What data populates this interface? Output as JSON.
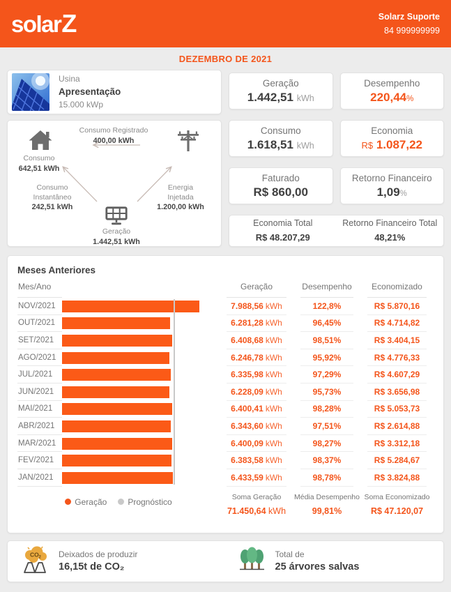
{
  "colors": {
    "accent": "#F4551B",
    "bar": "#FB5A17",
    "prognostico": "#C9C9C9",
    "page_bg": "#ECECEC"
  },
  "header": {
    "logo_text": "solar",
    "logo_z": "Z",
    "support_name": "Solarz Suporte",
    "support_phone": "84 999999999"
  },
  "period_title": "DEZEMBRO DE 2021",
  "plant": {
    "type_label": "Usina",
    "name": "Apresentação",
    "capacity": "15.000 kWp"
  },
  "flow": {
    "consumo_label": "Consumo",
    "consumo_value": "642,51 kWh",
    "registrado_label": "Consumo Registrado",
    "registrado_value": "400,00 kWh",
    "instantaneo_label1": "Consumo",
    "instantaneo_label2": "Instantâneo",
    "instantaneo_value": "242,51 kWh",
    "injetada_label1": "Energia",
    "injetada_label2": "Injetada",
    "injetada_value": "1.200,00 kWh",
    "geracao_label": "Geração",
    "geracao_value": "1.442,51 kWh"
  },
  "stats": {
    "geracao_label": "Geração",
    "geracao_value": "1.442,51",
    "geracao_unit": "kWh",
    "desempenho_label": "Desempenho",
    "desempenho_value": "220,44",
    "desempenho_unit": "%",
    "consumo_label": "Consumo",
    "consumo_value": "1.618,51",
    "consumo_unit": "kWh",
    "economia_label": "Economia",
    "economia_prefix": "R$",
    "economia_value": "1.087,22",
    "faturado_label": "Faturado",
    "faturado_value": "R$ 860,00",
    "retorno_label": "Retorno Financeiro",
    "retorno_value": "1,09",
    "retorno_unit": "%",
    "economia_total_label": "Economia Total",
    "economia_total_value": "R$ 48.207,29",
    "retorno_total_label": "Retorno Financeiro Total",
    "retorno_total_value": "48,21%"
  },
  "history": {
    "title": "Meses Anteriores",
    "month_col": "Mes/Ano",
    "columns": [
      "Geração",
      "Desempenho",
      "Economizado"
    ],
    "rows": [
      {
        "month": "NOV/2021",
        "geracao": "7.988,56",
        "geracao_unit": "kWh",
        "desempenho": "122,8%",
        "economizado": "R$ 5.870,16"
      },
      {
        "month": "OUT/2021",
        "geracao": "6.281,28",
        "geracao_unit": "kWh",
        "desempenho": "96,45%",
        "economizado": "R$ 4.714,82"
      },
      {
        "month": "SET/2021",
        "geracao": "6.408,68",
        "geracao_unit": "kWh",
        "desempenho": "98,51%",
        "economizado": "R$ 3.404,15"
      },
      {
        "month": "AGO/2021",
        "geracao": "6.246,78",
        "geracao_unit": "kWh",
        "desempenho": "95,92%",
        "economizado": "R$ 4.776,33"
      },
      {
        "month": "JUL/2021",
        "geracao": "6.335,98",
        "geracao_unit": "kWh",
        "desempenho": "97,29%",
        "economizado": "R$ 4.607,29"
      },
      {
        "month": "JUN/2021",
        "geracao": "6.228,09",
        "geracao_unit": "kWh",
        "desempenho": "95,73%",
        "economizado": "R$ 3.656,98"
      },
      {
        "month": "MAI/2021",
        "geracao": "6.400,41",
        "geracao_unit": "kWh",
        "desempenho": "98,28%",
        "economizado": "R$ 5.053,73"
      },
      {
        "month": "ABR/2021",
        "geracao": "6.343,60",
        "geracao_unit": "kWh",
        "desempenho": "97,51%",
        "economizado": "R$ 2.614,88"
      },
      {
        "month": "MAR/2021",
        "geracao": "6.400,09",
        "geracao_unit": "kWh",
        "desempenho": "98,27%",
        "economizado": "R$ 3.312,18"
      },
      {
        "month": "FEV/2021",
        "geracao": "6.383,58",
        "geracao_unit": "kWh",
        "desempenho": "98,37%",
        "economizado": "R$ 5.284,67"
      },
      {
        "month": "JAN/2021",
        "geracao": "6.433,59",
        "geracao_unit": "kWh",
        "desempenho": "98,78%",
        "economizado": "R$ 3.824,88"
      }
    ],
    "legend": [
      {
        "label": "Geração",
        "color": "#F4551B"
      },
      {
        "label": "Prognóstico",
        "color": "#C9C9C9"
      }
    ],
    "totals": {
      "geracao_label": "Soma Geração",
      "geracao_value": "71.450,64",
      "geracao_unit": "kWh",
      "desempenho_label": "Média Desempenho",
      "desempenho_value": "99,81%",
      "economizado_label": "Soma Economizado",
      "economizado_value": "R$ 47.120,07"
    }
  },
  "chart_data": {
    "type": "bar",
    "orientation": "horizontal",
    "title": "Meses Anteriores",
    "categories": [
      "NOV/2021",
      "OUT/2021",
      "SET/2021",
      "AGO/2021",
      "JUL/2021",
      "JUN/2021",
      "MAI/2021",
      "ABR/2021",
      "MAR/2021",
      "FEV/2021",
      "JAN/2021"
    ],
    "series": [
      {
        "name": "Geração (kWh)",
        "values": [
          7988.56,
          6281.28,
          6408.68,
          6246.78,
          6335.98,
          6228.09,
          6400.41,
          6343.6,
          6400.09,
          6383.58,
          6433.59
        ]
      },
      {
        "name": "Desempenho (%)",
        "values": [
          122.8,
          96.45,
          98.51,
          95.92,
          97.29,
          95.73,
          98.28,
          97.51,
          98.27,
          98.37,
          98.78
        ]
      },
      {
        "name": "Economizado (R$)",
        "values": [
          5870.16,
          4714.82,
          3404.15,
          4776.33,
          4607.29,
          3656.98,
          5053.73,
          2614.88,
          3312.18,
          5284.67,
          3824.88
        ]
      }
    ],
    "prognostico_kwh": 6505,
    "legend": [
      "Geração",
      "Prognóstico"
    ],
    "legend_position": "bottom",
    "unit": "kWh",
    "grid": false,
    "xlim": [
      0,
      8000
    ]
  },
  "eco": {
    "co2_label": "Deixados de produzir",
    "co2_value": "16,15t de CO₂",
    "trees_label": "Total de",
    "trees_value": "25 árvores salvas"
  }
}
